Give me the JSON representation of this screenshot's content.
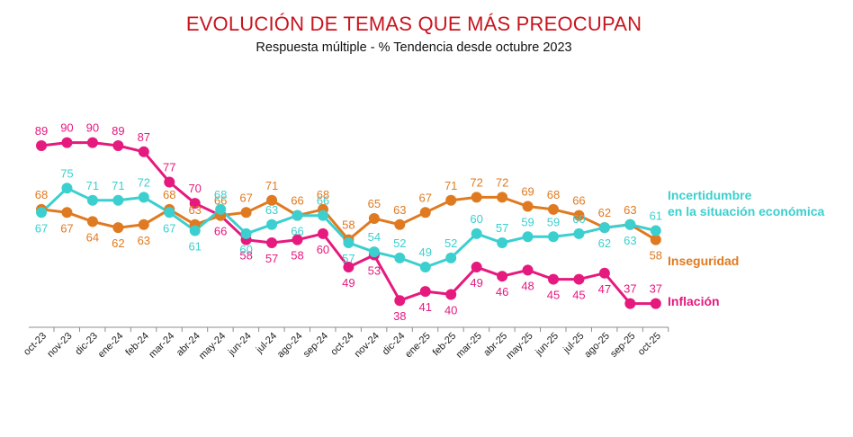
{
  "chart_data": {
    "type": "line",
    "title": "EVOLUCIÓN DE TEMAS QUE MÁS PREOCUPAN",
    "subtitle": "Respuesta múltiple - % Tendencia desde octubre 2023",
    "xlabel": "",
    "ylabel": "",
    "ylim": [
      30,
      100
    ],
    "grid": false,
    "legend_position": "right",
    "categories": [
      "oct-23",
      "nov-23",
      "dic-23",
      "ene-24",
      "feb-24",
      "mar-24",
      "abr-24",
      "may-24",
      "jun-24",
      "jul-24",
      "ago-24",
      "sep-24",
      "oct-24",
      "nov-24",
      "dic-24",
      "ene-25",
      "feb-25",
      "mar-25",
      "abr-25",
      "may-25",
      "jun-25",
      "jul-25",
      "ago-25",
      "sep-25",
      "oct-25"
    ],
    "series": [
      {
        "key": "inflacion",
        "name": "Inflación",
        "color": "#e6197e",
        "values": [
          89,
          90,
          90,
          89,
          87,
          77,
          70,
          66,
          58,
          57,
          58,
          60,
          49,
          53,
          38,
          41,
          40,
          49,
          46,
          48,
          45,
          45,
          47,
          37,
          37
        ]
      },
      {
        "key": "inseguridad",
        "name": "Inseguridad",
        "color": "#e07a20",
        "values": [
          68,
          67,
          64,
          62,
          63,
          68,
          63,
          66,
          67,
          71,
          66,
          68,
          58,
          65,
          63,
          67,
          71,
          72,
          72,
          69,
          68,
          66,
          62,
          63,
          58
        ]
      },
      {
        "key": "incertidumbre",
        "name_lines": [
          "Incertidumbre",
          "en la situación económica"
        ],
        "color": "#3ccfcf",
        "values": [
          67,
          75,
          71,
          71,
          72,
          67,
          61,
          68,
          60,
          63,
          66,
          66,
          57,
          54,
          52,
          49,
          52,
          60,
          57,
          59,
          59,
          60,
          62,
          63,
          61
        ]
      }
    ]
  }
}
